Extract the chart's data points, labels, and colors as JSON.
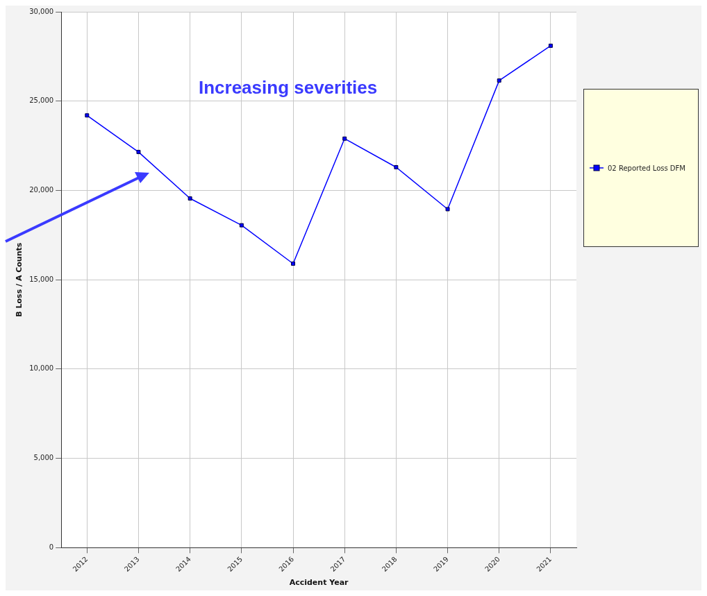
{
  "chart_data": {
    "type": "line",
    "xlabel": "Accident Year",
    "ylabel": "B Loss / A Counts",
    "categories": [
      "2012",
      "2013",
      "2014",
      "2015",
      "2016",
      "2017",
      "2018",
      "2019",
      "2020",
      "2021"
    ],
    "series": [
      {
        "name": "02 Reported Loss DFM",
        "color": "#0000ff",
        "values": [
          24200,
          22150,
          19550,
          18050,
          15900,
          22900,
          21300,
          18950,
          26150,
          28100
        ]
      }
    ],
    "ylim": [
      0,
      30000
    ],
    "yticks": [
      {
        "value": 0,
        "label": "0"
      },
      {
        "value": 5000,
        "label": "5,000"
      },
      {
        "value": 10000,
        "label": "10,000"
      },
      {
        "value": 15000,
        "label": "15,000"
      },
      {
        "value": 20000,
        "label": "20,000"
      },
      {
        "value": 25000,
        "label": "25,000"
      },
      {
        "value": 30000,
        "label": "30,000"
      }
    ],
    "grid": true,
    "legend": "right",
    "marker": "square",
    "line_style": "solid",
    "annotations": [
      "Increasing severities"
    ]
  }
}
